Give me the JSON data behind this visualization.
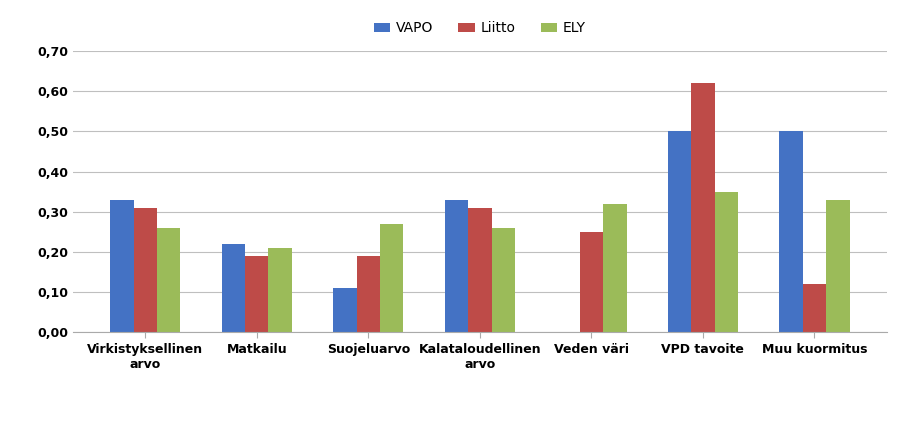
{
  "categories": [
    "Virkistyksellinen\narvo",
    "Matkailu",
    "Suojeluarvo",
    "Kalataloudellinen\narvo",
    "Veden väri",
    "VPD tavoite",
    "Muu kuormitus"
  ],
  "series": {
    "VAPO": [
      0.33,
      0.22,
      0.11,
      0.33,
      0.0,
      0.5,
      0.5
    ],
    "Liitto": [
      0.31,
      0.19,
      0.19,
      0.31,
      0.25,
      0.62,
      0.12
    ],
    "ELY": [
      0.26,
      0.21,
      0.27,
      0.26,
      0.32,
      0.35,
      0.33
    ]
  },
  "colors": {
    "VAPO": "#4472C4",
    "Liitto": "#BE4B48",
    "ELY": "#9BBB59"
  },
  "ylim": [
    0,
    0.7
  ],
  "yticks": [
    0.0,
    0.1,
    0.2,
    0.3,
    0.4,
    0.5,
    0.6,
    0.7
  ],
  "ytick_labels": [
    "0,00",
    "0,10",
    "0,20",
    "0,30",
    "0,40",
    "0,50",
    "0,60",
    "0,70"
  ],
  "legend_labels": [
    "VAPO",
    "Liitto",
    "ELY"
  ],
  "bar_width": 0.21,
  "background_color": "#FFFFFF",
  "grid_color": "#BFBFBF",
  "font_size_ticks": 9,
  "font_size_legend": 10,
  "font_weight_ticks": "bold"
}
